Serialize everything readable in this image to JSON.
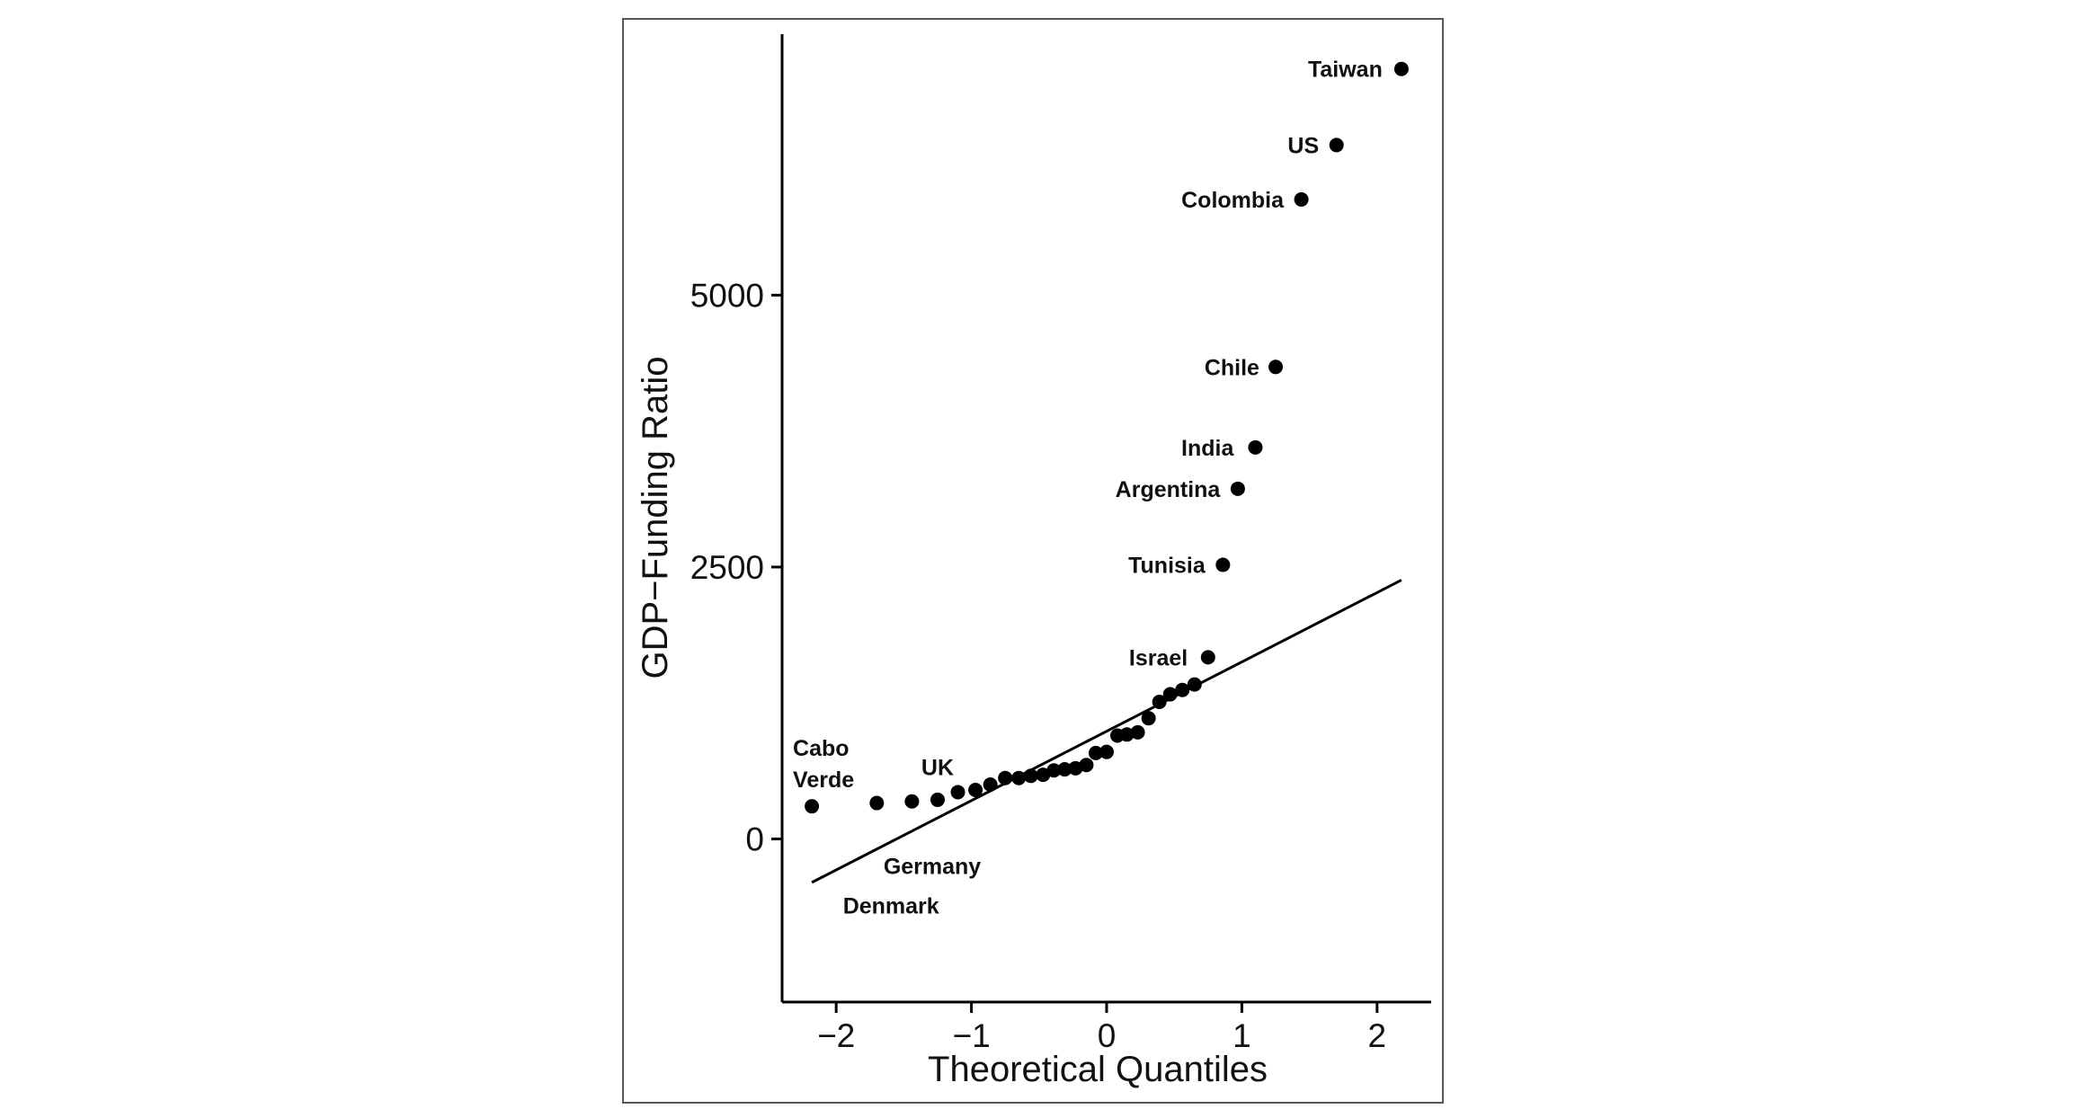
{
  "chart_data": {
    "type": "scatter",
    "title": "",
    "xlabel": "Theoretical Quantiles",
    "ylabel": "GDP−Funding Ratio",
    "xlim": [
      -2.4,
      2.4
    ],
    "ylim": [
      -1500,
      7400
    ],
    "x_ticks": [
      -2,
      -1,
      0,
      1,
      2
    ],
    "x_tick_labels": [
      "−2",
      "−1",
      "0",
      "1",
      "2"
    ],
    "y_ticks": [
      0,
      2500,
      5000
    ],
    "y_tick_labels": [
      "0",
      "2500",
      "5000"
    ],
    "grid": false,
    "legend": "none",
    "point_color": "#000000",
    "reference_line": {
      "x": [
        -2.18,
        2.18
      ],
      "y": [
        -400,
        2380
      ]
    },
    "points": [
      {
        "x": -2.18,
        "y": 300
      },
      {
        "x": -1.7,
        "y": 330
      },
      {
        "x": -1.44,
        "y": 345
      },
      {
        "x": -1.25,
        "y": 360
      },
      {
        "x": -1.1,
        "y": 430
      },
      {
        "x": -0.97,
        "y": 450
      },
      {
        "x": -0.86,
        "y": 500
      },
      {
        "x": -0.75,
        "y": 560
      },
      {
        "x": -0.65,
        "y": 560
      },
      {
        "x": -0.56,
        "y": 580
      },
      {
        "x": -0.47,
        "y": 590
      },
      {
        "x": -0.39,
        "y": 630
      },
      {
        "x": -0.31,
        "y": 640
      },
      {
        "x": -0.23,
        "y": 650
      },
      {
        "x": -0.15,
        "y": 680
      },
      {
        "x": -0.08,
        "y": 790
      },
      {
        "x": 0.0,
        "y": 800
      },
      {
        "x": 0.08,
        "y": 950
      },
      {
        "x": 0.15,
        "y": 960
      },
      {
        "x": 0.23,
        "y": 980
      },
      {
        "x": 0.31,
        "y": 1110
      },
      {
        "x": 0.39,
        "y": 1260
      },
      {
        "x": 0.47,
        "y": 1330
      },
      {
        "x": 0.56,
        "y": 1370
      },
      {
        "x": 0.65,
        "y": 1420
      },
      {
        "x": 0.75,
        "y": 1670
      },
      {
        "x": 0.86,
        "y": 2520
      },
      {
        "x": 0.97,
        "y": 3220
      },
      {
        "x": 1.1,
        "y": 3600
      },
      {
        "x": 1.25,
        "y": 4340
      },
      {
        "x": 1.44,
        "y": 5880
      },
      {
        "x": 1.7,
        "y": 6380
      },
      {
        "x": 2.18,
        "y": 7080
      }
    ],
    "annotations": [
      {
        "text": "Taiwan",
        "x": 2.04,
        "y": 7080,
        "anchor": "end"
      },
      {
        "text": "US",
        "x": 1.57,
        "y": 6380,
        "anchor": "end"
      },
      {
        "text": "Colombia",
        "x": 1.31,
        "y": 5880,
        "anchor": "end"
      },
      {
        "text": "Chile",
        "x": 1.13,
        "y": 4340,
        "anchor": "end"
      },
      {
        "text": "India",
        "x": 0.94,
        "y": 3600,
        "anchor": "end"
      },
      {
        "text": "Argentina",
        "x": 0.84,
        "y": 3220,
        "anchor": "end"
      },
      {
        "text": "Tunisia",
        "x": 0.73,
        "y": 2520,
        "anchor": "end"
      },
      {
        "text": "Israel",
        "x": 0.6,
        "y": 1670,
        "anchor": "end"
      },
      {
        "text": "Cabo",
        "x": -2.32,
        "y": 840,
        "anchor": "start"
      },
      {
        "text": "Verde",
        "x": -2.32,
        "y": 550,
        "anchor": "start"
      },
      {
        "text": "UK",
        "x": -1.37,
        "y": 660,
        "anchor": "start"
      },
      {
        "text": "Germany",
        "x": -1.65,
        "y": -250,
        "anchor": "start"
      },
      {
        "text": "Denmark",
        "x": -1.95,
        "y": -610,
        "anchor": "start"
      }
    ]
  }
}
